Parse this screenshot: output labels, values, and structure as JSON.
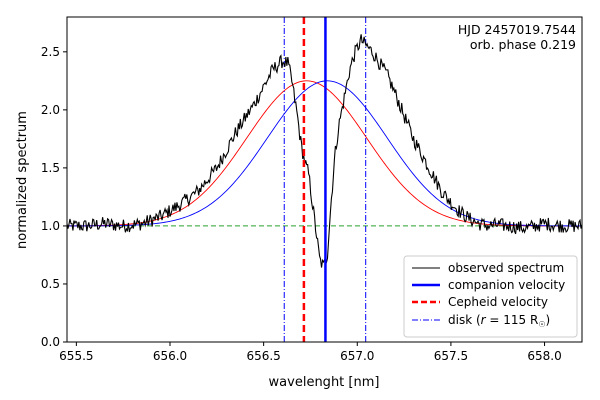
{
  "chart_data": {
    "type": "line",
    "xlabel": "wavelenght [nm]",
    "ylabel": "normalized spectrum",
    "xlim": [
      655.45,
      658.2
    ],
    "ylim": [
      0.0,
      2.8
    ],
    "xticks": [
      655.5,
      656.0,
      656.5,
      657.0,
      657.5,
      658.0
    ],
    "xtick_labels": [
      "655.5",
      "656.0",
      "656.5",
      "657.0",
      "657.5",
      "658.0"
    ],
    "yticks": [
      0.0,
      0.5,
      1.0,
      1.5,
      2.0,
      2.5
    ],
    "ytick_labels": [
      "0.0",
      "0.5",
      "1.0",
      "1.5",
      "2.0",
      "2.5"
    ],
    "annotations": [
      "HJD 2457019.7544",
      "orb. phase 0.219"
    ],
    "legend_position": "lower-right",
    "legend": [
      {
        "key": "observed",
        "label": "observed spectrum"
      },
      {
        "key": "companion",
        "label": "companion velocity"
      },
      {
        "key": "cepheid",
        "label": "Cepheid velocity"
      },
      {
        "key": "disk",
        "label": "disk ("
      },
      {
        "key": "disk_r",
        "label": "r"
      },
      {
        "key": "disk_val",
        "label": " = 115 R"
      },
      {
        "key": "disk_sun",
        "label": "☉"
      },
      {
        "key": "disk_close",
        "label": ")"
      }
    ],
    "series": [
      {
        "name": "observed spectrum",
        "color": "#000000",
        "x": [
          655.45,
          655.55,
          655.65,
          655.75,
          655.85,
          655.95,
          656.05,
          656.15,
          656.25,
          656.35,
          656.45,
          656.5,
          656.55,
          656.6,
          656.63,
          656.65,
          656.68,
          656.7,
          656.72,
          656.74,
          656.76,
          656.78,
          656.8,
          656.82,
          656.84,
          656.86,
          656.88,
          656.9,
          656.93,
          656.96,
          656.99,
          657.02,
          657.05,
          657.08,
          657.12,
          657.16,
          657.2,
          657.25,
          657.3,
          657.35,
          657.4,
          657.45,
          657.5,
          657.55,
          657.6,
          657.65,
          657.7,
          657.75,
          657.8,
          657.9,
          658.0,
          658.1,
          658.2
        ],
        "y": [
          1.0,
          1.0,
          1.02,
          1.0,
          1.02,
          1.08,
          1.18,
          1.3,
          1.5,
          1.8,
          2.05,
          2.2,
          2.35,
          2.42,
          2.4,
          2.25,
          1.95,
          1.7,
          1.55,
          1.45,
          1.2,
          0.95,
          0.7,
          0.65,
          0.75,
          1.2,
          1.6,
          1.85,
          2.1,
          2.35,
          2.5,
          2.6,
          2.55,
          2.5,
          2.4,
          2.3,
          2.15,
          1.95,
          1.75,
          1.6,
          1.45,
          1.3,
          1.2,
          1.12,
          1.06,
          1.02,
          1.0,
          1.01,
          1.0,
          0.98,
          1.02,
          1.0,
          1.0
        ]
      },
      {
        "name": "gaussian red",
        "color": "#ff0000",
        "peak_x": 656.73,
        "amplitude": 1.25,
        "sigma": 0.32,
        "baseline": 1.0
      },
      {
        "name": "gaussian blue",
        "color": "#0000ff",
        "peak_x": 656.84,
        "amplitude": 1.25,
        "sigma": 0.32,
        "baseline": 1.0
      }
    ],
    "reference_lines": [
      {
        "name": "continuum",
        "y": 1.0,
        "color": "#2ca02c",
        "style": "dashed"
      },
      {
        "name": "companion velocity",
        "x": 656.83,
        "color": "#0000ff",
        "style": "solid"
      },
      {
        "name": "Cepheid velocity",
        "x": 656.715,
        "color": "#ff0000",
        "style": "dashed"
      },
      {
        "name": "disk left",
        "x": 656.61,
        "color": "#0000ff",
        "style": "dashdot"
      },
      {
        "name": "disk right",
        "x": 657.045,
        "color": "#0000ff",
        "style": "dashdot"
      }
    ]
  }
}
